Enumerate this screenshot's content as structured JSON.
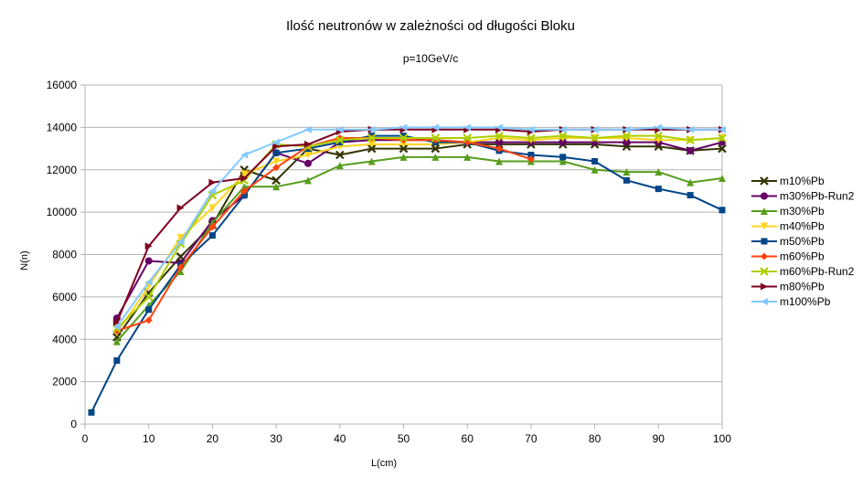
{
  "chart_data": {
    "type": "line",
    "title": "Ilość neutronów w zależności od długości Bloku",
    "subtitle": "p=10GeV/c",
    "xlabel": "L(cm)",
    "ylabel": "N(n)",
    "xlim": [
      0,
      100
    ],
    "ylim": [
      0,
      16000
    ],
    "x_ticks": [
      0,
      10,
      20,
      30,
      40,
      50,
      60,
      70,
      80,
      90,
      100
    ],
    "y_ticks": [
      0,
      2000,
      4000,
      6000,
      8000,
      10000,
      12000,
      14000,
      16000
    ],
    "grid": "horizontal",
    "legend_position": "right",
    "series": [
      {
        "name": "m10%Pb",
        "color": "#333300",
        "marker": "x",
        "x": [
          5,
          10,
          15,
          20,
          25,
          30,
          35,
          40,
          45,
          50,
          55,
          60,
          65,
          70,
          75,
          80,
          85,
          90,
          95,
          100
        ],
        "y": [
          4100,
          6200,
          7900,
          9400,
          12000,
          11500,
          13000,
          12700,
          13000,
          13000,
          13000,
          13200,
          13200,
          13200,
          13200,
          13200,
          13100,
          13100,
          12900,
          13000
        ]
      },
      {
        "name": "m30%Pb-Run2",
        "color": "#660066",
        "marker": "circle",
        "x": [
          5,
          10,
          15,
          20,
          25,
          30,
          35,
          40,
          45,
          50,
          55,
          60,
          65,
          70,
          75,
          80,
          85,
          90,
          95,
          100
        ],
        "y": [
          5000,
          7700,
          7600,
          9600,
          10800,
          12800,
          12300,
          13300,
          13400,
          13400,
          13400,
          13300,
          13300,
          13300,
          13300,
          13300,
          13300,
          13300,
          12900,
          13300
        ]
      },
      {
        "name": "m30%Pb",
        "color": "#579d1c",
        "marker": "triangle",
        "x": [
          5,
          10,
          15,
          20,
          25,
          30,
          35,
          40,
          45,
          50,
          55,
          60,
          65,
          70,
          75,
          80,
          85,
          90,
          95,
          100
        ],
        "y": [
          3900,
          5600,
          7200,
          9500,
          11200,
          11200,
          11500,
          12200,
          12400,
          12600,
          12600,
          12600,
          12400,
          12400,
          12400,
          12000,
          11900,
          11900,
          11400,
          11600
        ]
      },
      {
        "name": "m40%Pb",
        "color": "#ffd320",
        "marker": "triangle-down",
        "x": [
          5,
          10,
          15,
          20,
          25,
          30,
          35,
          40,
          45,
          50,
          55,
          60,
          65,
          70,
          75,
          80,
          85,
          90,
          95,
          100
        ],
        "y": [
          4300,
          6500,
          8800,
          10200,
          11800,
          12400,
          12700,
          13100,
          13200,
          13200,
          13200,
          13300,
          13500,
          13400,
          13500,
          13500,
          13500,
          13400,
          13400,
          13500
        ]
      },
      {
        "name": "m50%Pb",
        "color": "#004586",
        "marker": "square",
        "x": [
          1,
          5,
          10,
          15,
          20,
          25,
          30,
          35,
          40,
          45,
          50,
          55,
          60,
          65,
          70,
          75,
          80,
          85,
          90,
          95,
          100
        ],
        "y": [
          550,
          3000,
          5400,
          7500,
          8900,
          10800,
          12800,
          13000,
          13300,
          13600,
          13600,
          13300,
          13300,
          12900,
          12700,
          12600,
          12400,
          11500,
          11100,
          10800,
          10100
        ]
      },
      {
        "name": "m60%Pb",
        "color": "#ff420e",
        "marker": "diamond",
        "x": [
          5,
          10,
          15,
          20,
          25,
          30,
          35,
          40,
          45,
          50,
          55,
          60,
          65,
          70
        ],
        "y": [
          4400,
          4900,
          7400,
          9300,
          11000,
          12100,
          13100,
          13500,
          13500,
          13400,
          13400,
          13300,
          13000,
          12500
        ]
      },
      {
        "name": "m60%Pb-Run2",
        "color": "#aecf00",
        "marker": "x",
        "x": [
          5,
          10,
          15,
          20,
          25,
          30,
          35,
          40,
          45,
          50,
          55,
          60,
          65,
          70,
          75,
          80,
          85,
          90,
          95,
          100
        ],
        "y": [
          4500,
          6000,
          8500,
          10800,
          11500,
          13200,
          13100,
          13400,
          13500,
          13500,
          13500,
          13500,
          13600,
          13500,
          13600,
          13500,
          13600,
          13600,
          13400,
          13500
        ]
      },
      {
        "name": "m80%Pb",
        "color": "#7e0021",
        "marker": "triangle-right",
        "x": [
          5,
          10,
          15,
          20,
          25,
          30,
          35,
          40,
          45,
          50,
          55,
          60,
          65,
          70,
          75,
          80,
          85,
          90,
          95,
          100
        ],
        "y": [
          4800,
          8400,
          10200,
          11400,
          11600,
          13100,
          13200,
          13800,
          13900,
          13900,
          13900,
          13900,
          13900,
          13800,
          13900,
          13900,
          13900,
          13900,
          13900,
          13900
        ]
      },
      {
        "name": "m100%Pb",
        "color": "#83caff",
        "marker": "triangle-left",
        "x": [
          5,
          10,
          15,
          20,
          25,
          30,
          35,
          40,
          45,
          50,
          55,
          60,
          65,
          70,
          75,
          80,
          85,
          90,
          95,
          100
        ],
        "y": [
          4600,
          6700,
          8600,
          11000,
          12700,
          13300,
          13900,
          13900,
          13900,
          14000,
          14000,
          14000,
          14000,
          13900,
          13900,
          13900,
          13900,
          14000,
          13900,
          13900
        ]
      }
    ]
  }
}
